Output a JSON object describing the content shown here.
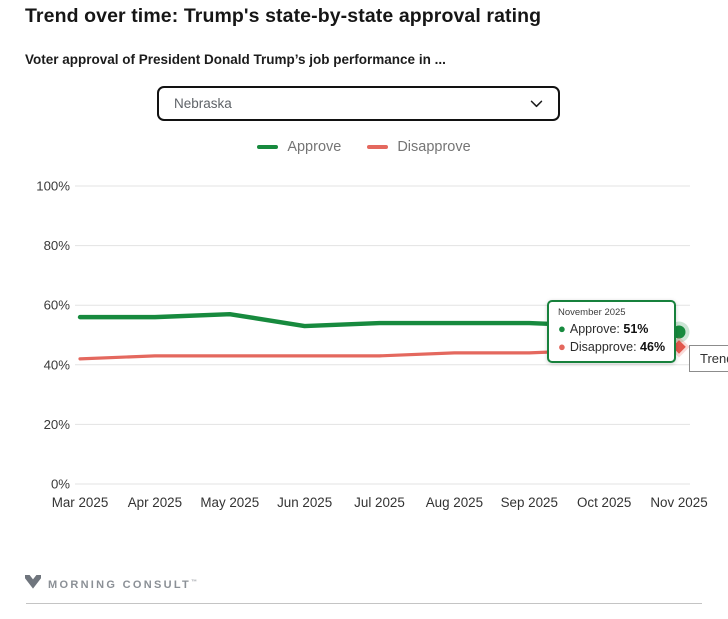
{
  "header": {
    "title": "Trend over time: Trump's state-by-state approval rating",
    "subtitle": "Voter approval of President Donald Trump’s job performance in ..."
  },
  "state_select": {
    "value": "Nebraska"
  },
  "legend": {
    "items": [
      {
        "label": "Approve",
        "color": "#178a3e"
      },
      {
        "label": "Disapprove",
        "color": "#e4685e"
      }
    ]
  },
  "chart_data": {
    "type": "line",
    "x": [
      "Mar 2025",
      "Apr 2025",
      "May 2025",
      "Jun 2025",
      "Jul 2025",
      "Aug 2025",
      "Sep 2025",
      "Oct 2025",
      "Nov 2025"
    ],
    "series": [
      {
        "name": "Approve",
        "color": "#178a3e",
        "marker": "circle",
        "marker_color": "#178a3e",
        "values": [
          56,
          56,
          57,
          53,
          54,
          54,
          54,
          53,
          51
        ]
      },
      {
        "name": "Disapprove",
        "color": "#e4685e",
        "marker": "diamond",
        "marker_color": "#e2574c",
        "values": [
          42,
          43,
          43,
          43,
          43,
          44,
          44,
          45,
          46
        ]
      }
    ],
    "title": "Trend over time: Trump's state-by-state approval rating",
    "xlabel": "",
    "ylabel": "",
    "ylim": [
      0,
      100
    ],
    "yticks": [
      0,
      20,
      40,
      60,
      80,
      100
    ],
    "ytick_labels": [
      "0%",
      "20%",
      "40%",
      "60%",
      "80%",
      "100%"
    ],
    "grid": true,
    "gridline_color": "#e3e3e3",
    "axis_label_color": "#3a3a3a",
    "legend_position": "top"
  },
  "tooltip": {
    "date": "November 2025",
    "rows": [
      {
        "bullet": "●",
        "name": "Approve:",
        "value": "51%",
        "color": "#178a3e"
      },
      {
        "bullet": "●",
        "name": "Disapprove:",
        "value": "46%",
        "color": "#e4685e"
      }
    ]
  },
  "trend_label": "Trend",
  "footer": {
    "brand": "MORNING CONSULT",
    "tm": "™"
  }
}
